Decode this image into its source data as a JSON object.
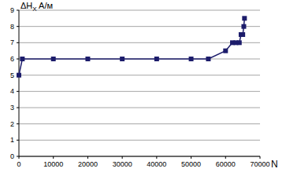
{
  "chart_data": {
    "type": "line",
    "y_label": "ΔHX A/м",
    "x_label": "N",
    "x": [
      0,
      1000,
      10000,
      20000,
      30000,
      40000,
      50000,
      55000,
      60000,
      62000,
      63000,
      64000,
      64500,
      65000,
      65300,
      65500
    ],
    "values": [
      5,
      6,
      6,
      6,
      6,
      6,
      6,
      6,
      6.5,
      7,
      7,
      7,
      7.5,
      7.5,
      8,
      8.5
    ],
    "color": "#1c1c6b",
    "marker": "square",
    "line_style": "solid",
    "xlim": [
      0,
      70000
    ],
    "xticks": [
      0,
      10000,
      20000,
      30000,
      40000,
      50000,
      60000,
      70000
    ],
    "ylim": [
      0,
      9
    ],
    "yticks": [
      0,
      1,
      2,
      3,
      4,
      5,
      6,
      7,
      8,
      9
    ],
    "grid": true
  }
}
